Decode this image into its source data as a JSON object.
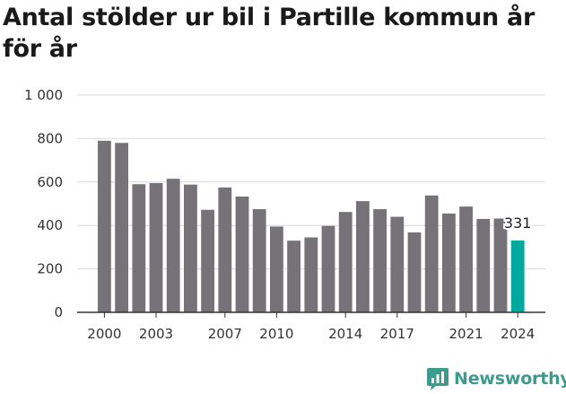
{
  "title": "Antal stölder ur bil i Partille kommun år för år",
  "brand": {
    "name": "Newsworthy",
    "icon": "newsworthy-logo-icon",
    "color": "#3d9b8e"
  },
  "colors": {
    "bar": "#757378",
    "highlight": "#00a99d",
    "grid": "#d9d9d9",
    "axis": "#333333"
  },
  "chart_data": {
    "type": "bar",
    "title": "Antal stölder ur bil i Partille kommun år för år",
    "xlabel": "",
    "ylabel": "",
    "ylim": [
      0,
      1000
    ],
    "yticks": [
      0,
      200,
      400,
      600,
      800,
      1000
    ],
    "ytick_labels": [
      "0",
      "200",
      "400",
      "600",
      "800",
      "1 000"
    ],
    "xtick_labels": [
      "2000",
      "2003",
      "2007",
      "2010",
      "2014",
      "2017",
      "2021",
      "2024"
    ],
    "grid": true,
    "categories": [
      "2000",
      "2001",
      "2002",
      "2003",
      "2004",
      "2005",
      "2006",
      "2007",
      "2008",
      "2009",
      "2010",
      "2011",
      "2012",
      "2013",
      "2014",
      "2015",
      "2016",
      "2017",
      "2018",
      "2019",
      "2020",
      "2021",
      "2022",
      "2023",
      "2024"
    ],
    "values": [
      790,
      780,
      590,
      595,
      615,
      588,
      472,
      575,
      533,
      475,
      395,
      330,
      345,
      398,
      462,
      512,
      475,
      440,
      368,
      538,
      455,
      487,
      430,
      432,
      331
    ],
    "highlight": {
      "category": "2024",
      "label": "331"
    }
  }
}
